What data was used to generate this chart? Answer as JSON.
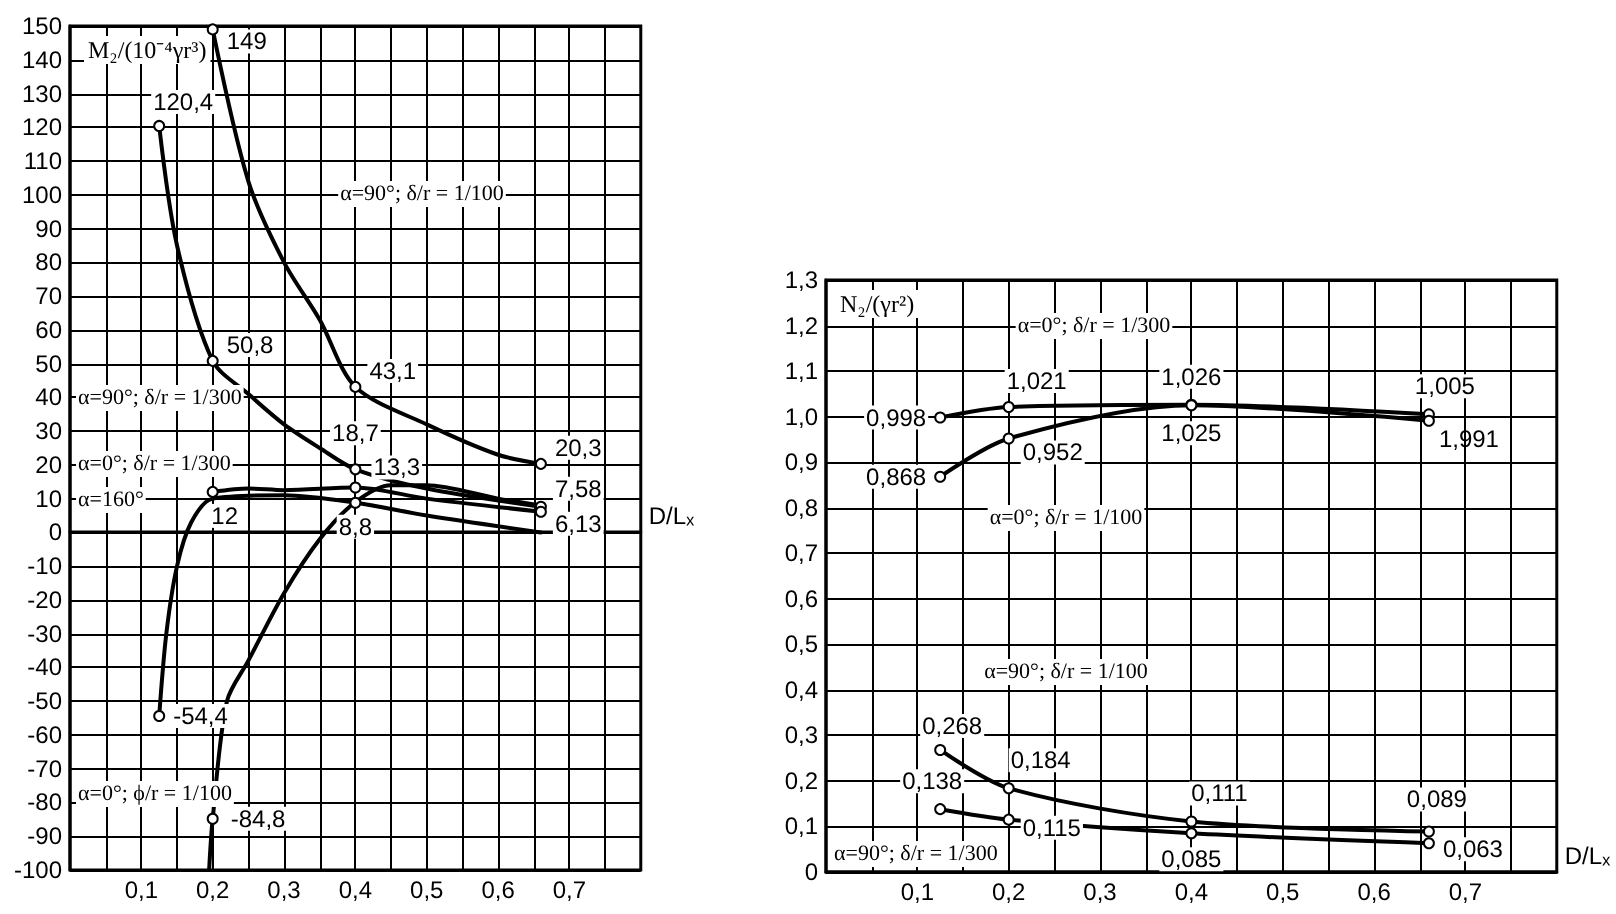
{
  "chart_data": [
    {
      "type": "line",
      "ylabel": "M₂/(10⁻⁴γr³)",
      "xlabel": "D/Lₓ",
      "xlim": [
        0,
        0.8
      ],
      "ylim": [
        -100,
        150
      ],
      "grid": true,
      "xticks": [
        {
          "value": 0.05,
          "label": null
        },
        {
          "value": 0.1,
          "label": "0,1"
        },
        {
          "value": 0.15,
          "label": null
        },
        {
          "value": 0.2,
          "label": "0,2"
        },
        {
          "value": 0.25,
          "label": null
        },
        {
          "value": 0.3,
          "label": "0,3"
        },
        {
          "value": 0.35,
          "label": null
        },
        {
          "value": 0.4,
          "label": "0,4"
        },
        {
          "value": 0.45,
          "label": null
        },
        {
          "value": 0.5,
          "label": "0,5"
        },
        {
          "value": 0.55,
          "label": null
        },
        {
          "value": 0.6,
          "label": "0,6"
        },
        {
          "value": 0.65,
          "label": null
        },
        {
          "value": 0.7,
          "label": "0,7"
        },
        {
          "value": 0.75,
          "label": null
        }
      ],
      "yticks": [
        -100,
        -90,
        -80,
        -70,
        -60,
        -50,
        -40,
        -30,
        -20,
        -10,
        0,
        10,
        20,
        30,
        40,
        50,
        60,
        70,
        80,
        90,
        100,
        110,
        120,
        130,
        140,
        150
      ],
      "annotations": [
        "α=90°; δ/r = 1/100",
        "α=90°; δ/r = 1/300",
        "α=0°; δ/r = 1/300",
        "α=160°",
        "α=0°; ϕ/r = 1/100"
      ],
      "series": [
        {
          "color": "#000000",
          "x": [
            0.125,
            0.15,
            0.2,
            0.25,
            0.3,
            0.35,
            0.4,
            0.5,
            0.66
          ],
          "values": [
            120.4,
            85,
            50.8,
            41,
            32,
            25,
            18.7,
            13,
            7.58
          ],
          "value_labels": [
            "120,4",
            null,
            "50,8",
            null,
            null,
            null,
            "18,7",
            null,
            "7,58"
          ]
        },
        {
          "color": "#000000",
          "x": [
            0.2,
            0.25,
            0.3,
            0.35,
            0.4,
            0.5,
            0.6,
            0.66
          ],
          "values": [
            149,
            104,
            80,
            63,
            43.1,
            32,
            23,
            20.3
          ],
          "value_labels": [
            "149",
            null,
            null,
            null,
            "43,1",
            null,
            null,
            "20,3"
          ]
        },
        {
          "color": "#000000",
          "x": [
            0.2,
            0.25,
            0.3,
            0.4,
            0.5,
            0.66
          ],
          "values": [
            12,
            13,
            12.5,
            13.3,
            10,
            6.13
          ],
          "value_labels": [
            "12",
            null,
            null,
            "13,3",
            null,
            "6,13"
          ]
        },
        {
          "color": "#000000",
          "x": [
            0.125,
            0.135,
            0.15,
            0.17,
            0.2,
            0.3,
            0.4,
            0.5,
            0.66
          ],
          "values": [
            -54.4,
            -30,
            -10,
            3,
            10,
            11,
            8.8,
            5,
            0
          ],
          "value_labels": [
            "-54,4",
            null,
            null,
            null,
            null,
            null,
            "8,8",
            null,
            null
          ]
        },
        {
          "color": "#000000",
          "x": [
            0.195,
            0.2,
            0.22,
            0.25,
            0.3,
            0.35,
            0.4,
            0.45,
            0.5,
            0.6,
            0.66
          ],
          "values": [
            -100,
            -84.8,
            -50,
            -38,
            -18,
            -2,
            9,
            14,
            14,
            10,
            8
          ],
          "value_labels": [
            null,
            "-84,8",
            null,
            null,
            null,
            null,
            null,
            null,
            null,
            null,
            null
          ]
        }
      ]
    },
    {
      "type": "line",
      "ylabel": "N₂/(γr²)",
      "xlabel": "D/Lₓ",
      "xlim": [
        0,
        0.8
      ],
      "ylim": [
        0,
        1.3
      ],
      "grid": true,
      "marker": "circle",
      "xticks": [
        {
          "value": 0.05,
          "label": null
        },
        {
          "value": 0.1,
          "label": "0,1"
        },
        {
          "value": 0.15,
          "label": null
        },
        {
          "value": 0.2,
          "label": "0,2"
        },
        {
          "value": 0.25,
          "label": null
        },
        {
          "value": 0.3,
          "label": "0,3"
        },
        {
          "value": 0.35,
          "label": null
        },
        {
          "value": 0.4,
          "label": "0,4"
        },
        {
          "value": 0.45,
          "label": null
        },
        {
          "value": 0.5,
          "label": "0,5"
        },
        {
          "value": 0.55,
          "label": null
        },
        {
          "value": 0.6,
          "label": "0,6"
        },
        {
          "value": 0.65,
          "label": null
        },
        {
          "value": 0.7,
          "label": "0,7"
        },
        {
          "value": 0.75,
          "label": null
        }
      ],
      "yticks": [
        0,
        {
          "value": 0.1,
          "label": "0,1"
        },
        {
          "value": 0.2,
          "label": "0,2"
        },
        {
          "value": 0.3,
          "label": "0,3"
        },
        {
          "value": 0.4,
          "label": "0,4"
        },
        {
          "value": 0.5,
          "label": "0,5"
        },
        {
          "value": 0.6,
          "label": "0,6"
        },
        {
          "value": 0.7,
          "label": "0,7"
        },
        {
          "value": 0.8,
          "label": "0,8"
        },
        {
          "value": 0.9,
          "label": "0,9"
        },
        {
          "value": 1.0,
          "label": "1,0"
        },
        {
          "value": 1.1,
          "label": "1,1"
        },
        {
          "value": 1.2,
          "label": "1,2"
        },
        {
          "value": 1.3,
          "label": "1,3"
        }
      ],
      "annotations": [
        "α=0°; δ/r = 1/300",
        "α=0°; δ/r = 1/100",
        "α=90°; δ/r = 1/100",
        "α=90°; δ/r = 1/300",
        "1,991"
      ],
      "series": [
        {
          "color": "#000000",
          "x": [
            0.125,
            0.2,
            0.4,
            0.66
          ],
          "values": [
            0.998,
            1.021,
            1.026,
            1.005
          ],
          "value_labels": [
            "0,998",
            "1,021",
            "1,026",
            "1,005"
          ]
        },
        {
          "color": "#000000",
          "x": [
            0.125,
            0.2,
            0.4,
            0.66
          ],
          "values": [
            0.868,
            0.952,
            1.025,
            0.991
          ],
          "value_labels": [
            "0,868",
            "0,952",
            "1,025",
            null
          ]
        },
        {
          "color": "#000000",
          "x": [
            0.125,
            0.2,
            0.4,
            0.66
          ],
          "values": [
            0.268,
            0.184,
            0.111,
            0.089
          ],
          "value_labels": [
            "0,268",
            "0,184",
            "0,111",
            "0,089"
          ]
        },
        {
          "color": "#000000",
          "x": [
            0.125,
            0.2,
            0.4,
            0.66
          ],
          "values": [
            0.138,
            0.115,
            0.085,
            0.063
          ],
          "value_labels": [
            "0,138",
            "0,115",
            "0,085",
            "0,063"
          ]
        }
      ]
    }
  ]
}
